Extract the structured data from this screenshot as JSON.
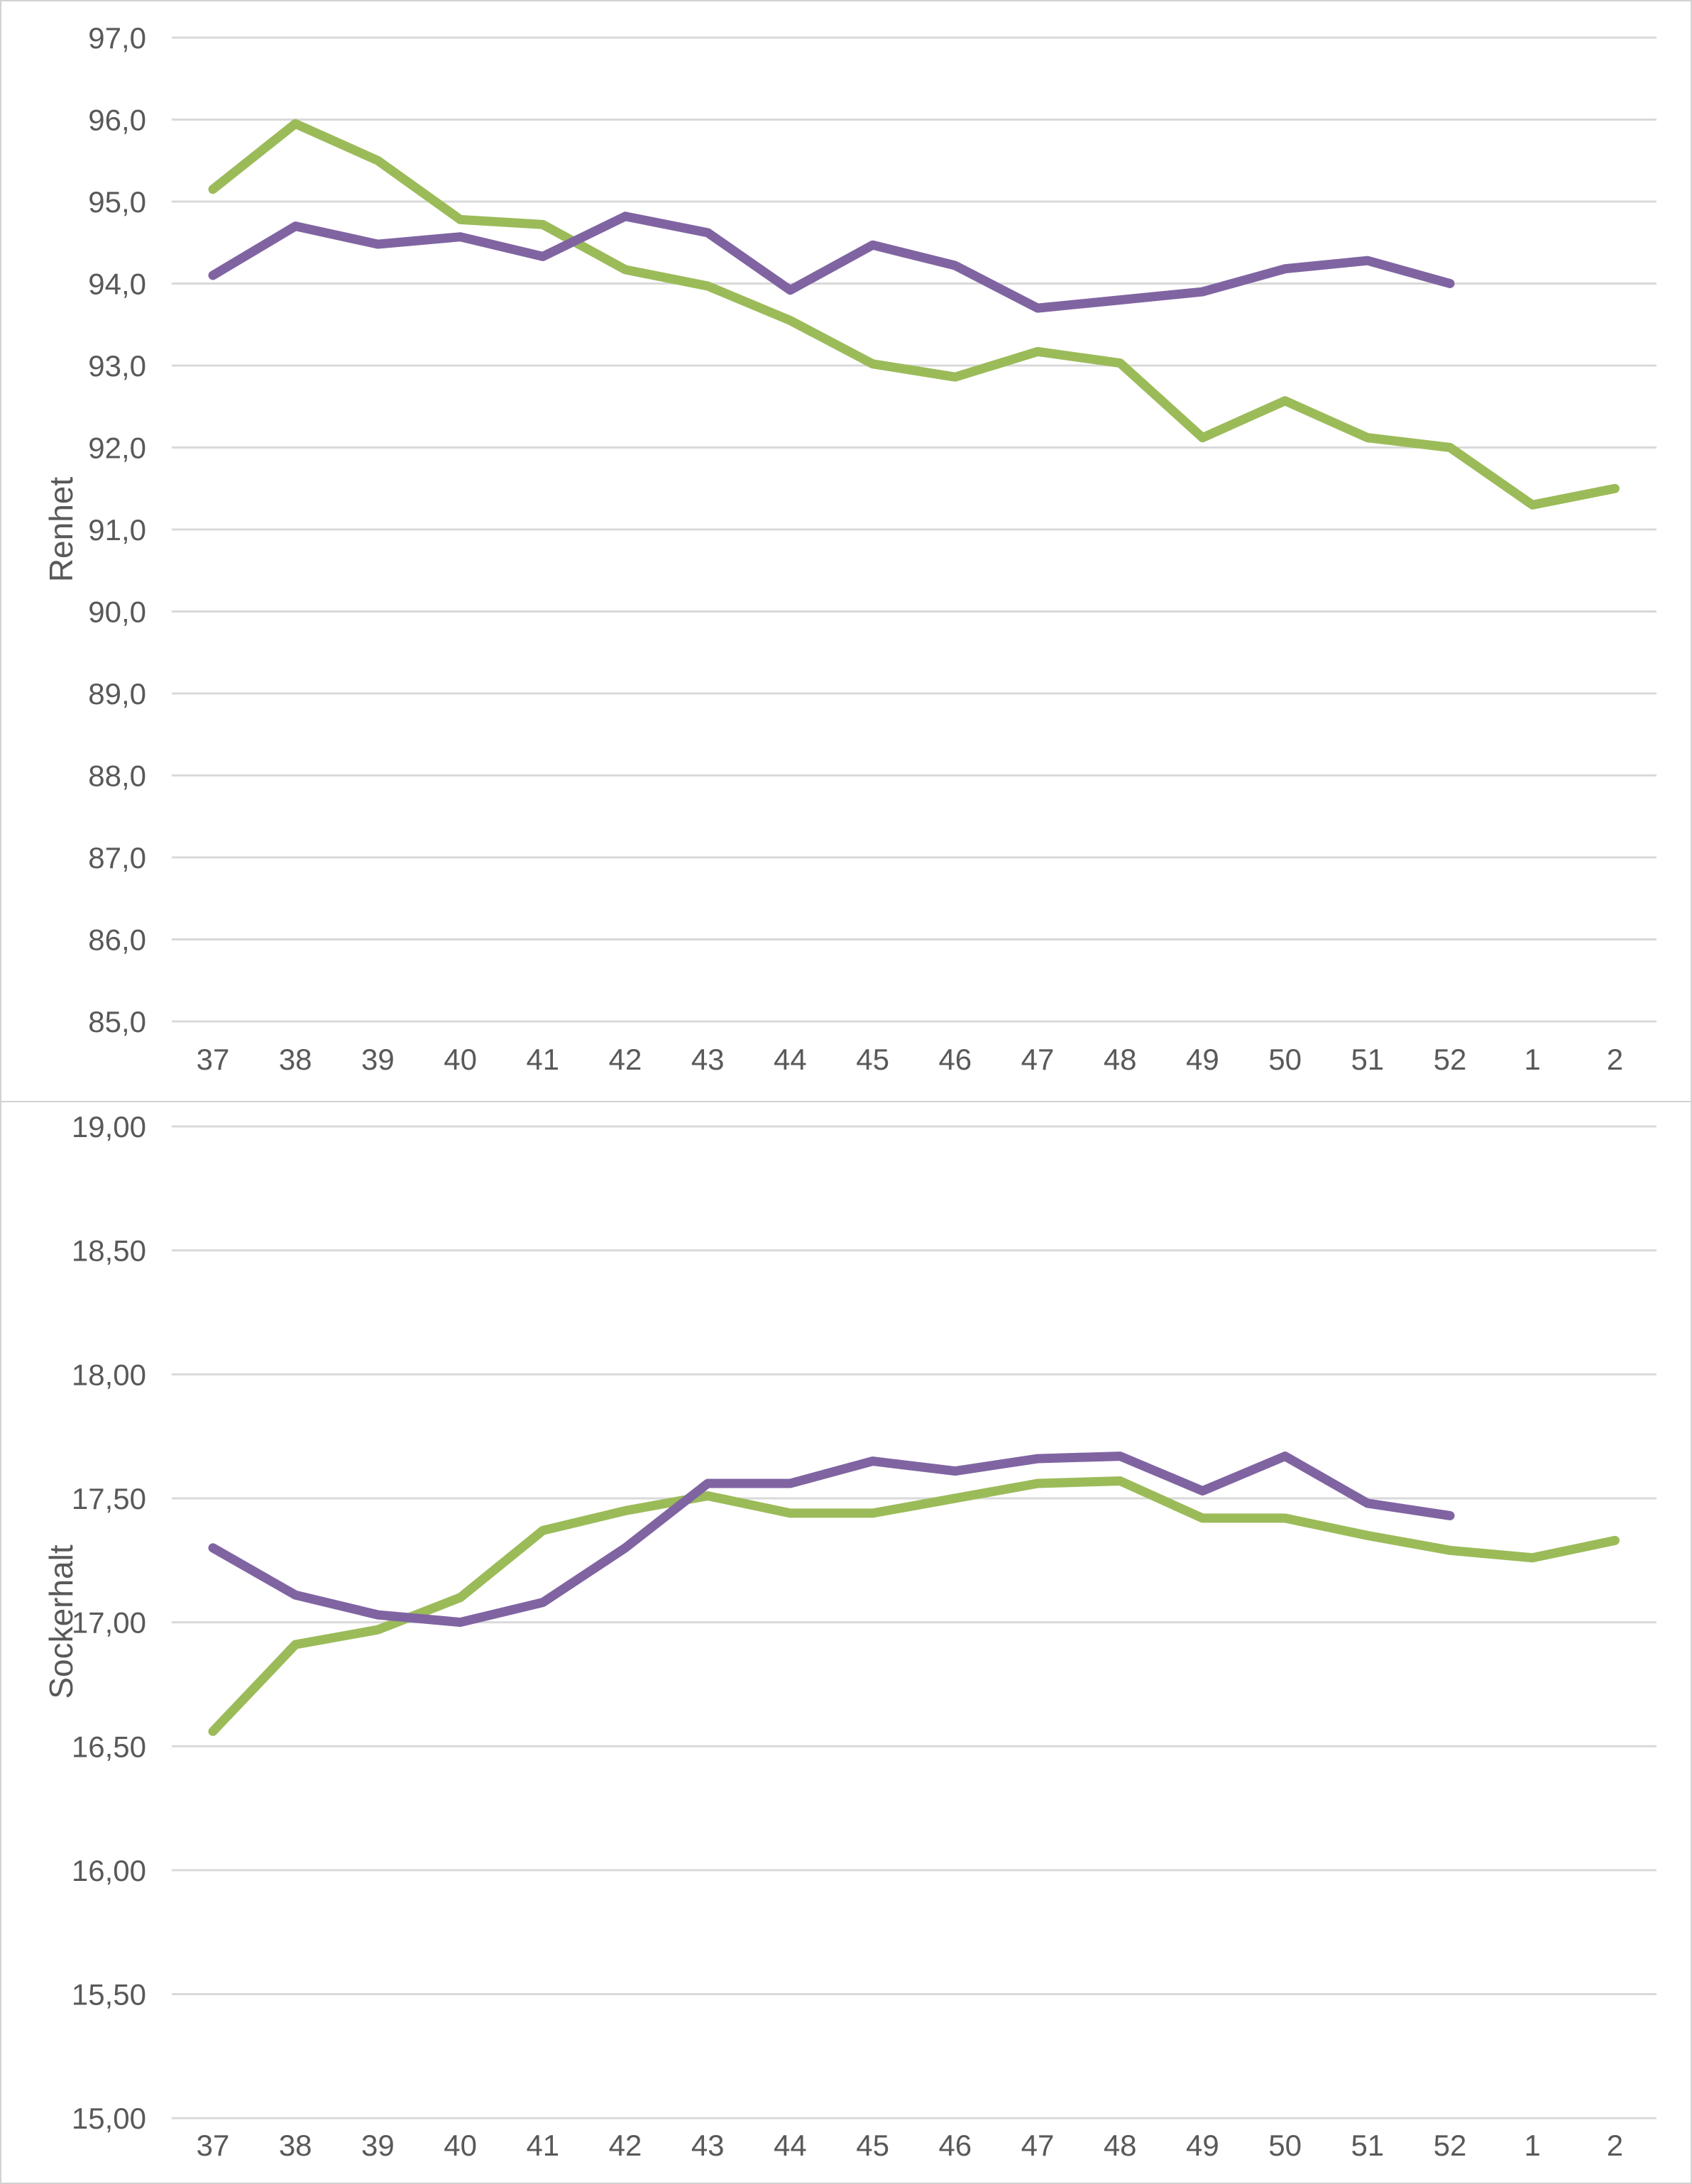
{
  "style": {
    "background": "#ffffff",
    "panel_border": "#d2d2d2",
    "gridline_color": "#d9d9d9",
    "axis_text_color": "#595959",
    "green_series_color": "#9bbb59",
    "purple_series_color": "#8064a2"
  },
  "chart_data": [
    {
      "type": "line",
      "title": "",
      "xlabel": "",
      "ylabel": "Renhet",
      "legend": "none",
      "grid": true,
      "ylim": [
        85.0,
        97.0
      ],
      "y_tick_step": 1.0,
      "y_tick_labels": [
        "97,0",
        "96,0",
        "95,0",
        "94,0",
        "93,0",
        "92,0",
        "91,0",
        "90,0",
        "89,0",
        "88,0",
        "87,0",
        "86,0",
        "85,0"
      ],
      "categories": [
        "37",
        "38",
        "39",
        "40",
        "41",
        "42",
        "43",
        "44",
        "45",
        "46",
        "47",
        "48",
        "49",
        "50",
        "51",
        "52",
        "1",
        "2"
      ],
      "series": [
        {
          "name": "green",
          "color_key": "green_series_color",
          "values": [
            95.15,
            95.95,
            95.5,
            94.78,
            94.72,
            94.17,
            93.97,
            93.55,
            93.02,
            92.86,
            93.17,
            93.03,
            92.12,
            92.57,
            92.12,
            92.0,
            91.3,
            91.5
          ]
        },
        {
          "name": "purple",
          "color_key": "purple_series_color",
          "values": [
            94.1,
            94.7,
            94.48,
            94.57,
            94.33,
            94.82,
            94.62,
            93.92,
            94.47,
            94.22,
            93.7,
            93.8,
            93.9,
            94.18,
            94.28,
            94.0,
            null,
            null
          ]
        }
      ]
    },
    {
      "type": "line",
      "title": "",
      "xlabel": "",
      "ylabel": "Sockerhalt",
      "legend": "none",
      "grid": true,
      "ylim": [
        15.0,
        19.0
      ],
      "y_tick_step": 0.5,
      "y_tick_labels": [
        "19,00",
        "18,50",
        "18,00",
        "17,50",
        "17,00",
        "16,50",
        "16,00",
        "15,50",
        "15,00"
      ],
      "categories": [
        "37",
        "38",
        "39",
        "40",
        "41",
        "42",
        "43",
        "44",
        "45",
        "46",
        "47",
        "48",
        "49",
        "50",
        "51",
        "52",
        "1",
        "2"
      ],
      "series": [
        {
          "name": "green",
          "color_key": "green_series_color",
          "values": [
            16.56,
            16.91,
            16.97,
            17.1,
            17.37,
            17.45,
            17.51,
            17.44,
            17.44,
            17.5,
            17.56,
            17.57,
            17.42,
            17.42,
            17.35,
            17.29,
            17.26,
            17.33
          ]
        },
        {
          "name": "purple",
          "color_key": "purple_series_color",
          "values": [
            17.3,
            17.11,
            17.03,
            17.0,
            17.08,
            17.3,
            17.56,
            17.56,
            17.65,
            17.61,
            17.66,
            17.67,
            17.53,
            17.67,
            17.48,
            17.43,
            null,
            null
          ]
        }
      ]
    }
  ]
}
